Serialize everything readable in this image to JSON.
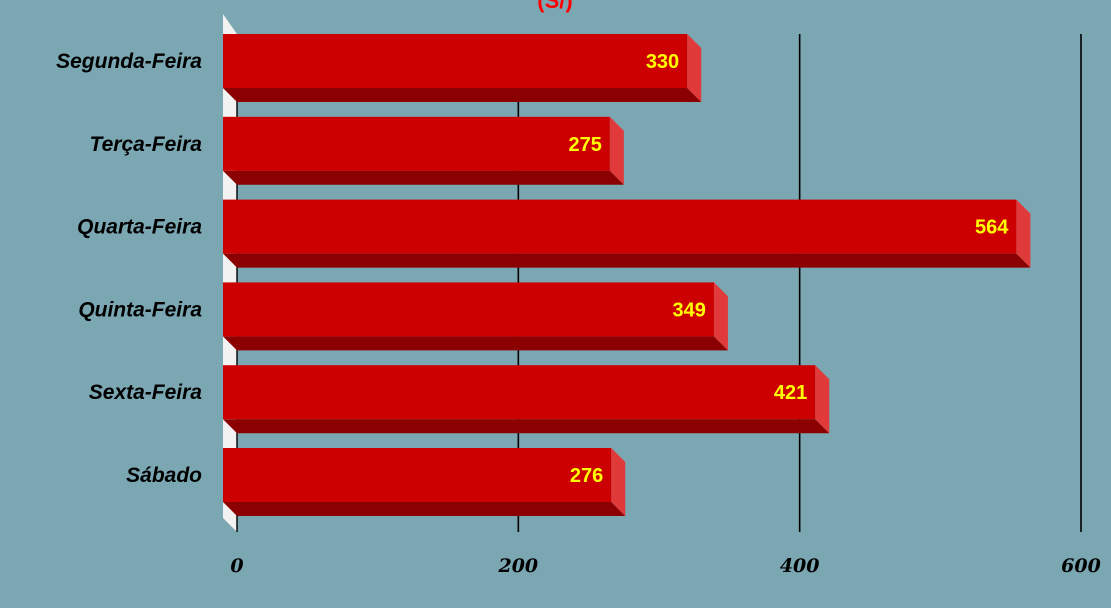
{
  "chart_data": {
    "type": "bar",
    "orientation": "horizontal",
    "title": "(S/)",
    "categories": [
      "Segunda-Feira",
      "Terça-Feira",
      "Quarta-Feira",
      "Quinta-Feira",
      "Sexta-Feira",
      "Sábado"
    ],
    "values": [
      330,
      275,
      564,
      349,
      421,
      276
    ],
    "xlim": [
      0,
      600
    ],
    "ticks": [
      0,
      200,
      400,
      600
    ],
    "grid": true,
    "legend": "none",
    "three_d": true
  },
  "colors": {
    "background": "#7ba7b3",
    "bar_front": "#cc0000",
    "bar_bottom": "#8b0000",
    "bar_end": "#e03a3a",
    "value_label": "#ffff00",
    "title": "#ff0000",
    "gridline": "#000000",
    "wall": "#f2f2f2"
  }
}
